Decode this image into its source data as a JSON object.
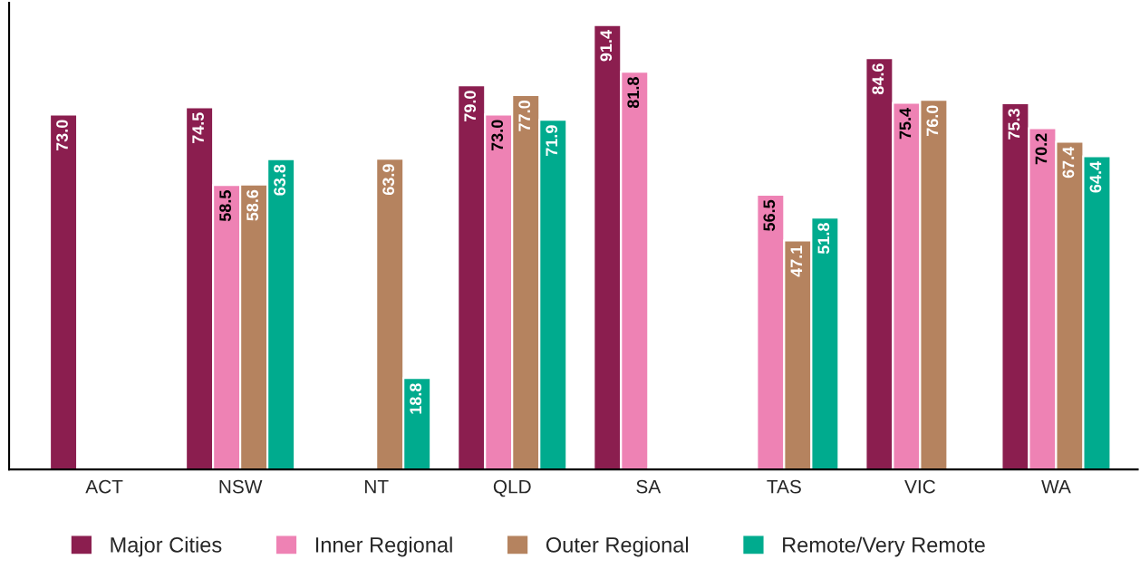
{
  "chart_data": {
    "type": "bar",
    "categories": [
      "ACT",
      "NSW",
      "NT",
      "QLD",
      "SA",
      "TAS",
      "VIC",
      "WA"
    ],
    "series": [
      {
        "name": "Major Cities",
        "color": "#8b1e4f",
        "values": [
          73.0,
          74.5,
          null,
          79.0,
          91.4,
          null,
          84.6,
          75.3
        ],
        "value_labels": [
          "73.0",
          "74.5",
          null,
          "79.0",
          "91.4",
          null,
          "84.6",
          "75.3"
        ]
      },
      {
        "name": "Inner Regional",
        "color": "#ee82b4",
        "values": [
          null,
          58.5,
          null,
          73.0,
          81.8,
          56.5,
          75.4,
          70.2
        ],
        "value_labels": [
          null,
          "58.5",
          null,
          "73.0",
          "81.8",
          "56.5",
          "75.4",
          "70.2"
        ]
      },
      {
        "name": "Outer Regional",
        "color": "#b5835f",
        "values": [
          null,
          58.6,
          63.9,
          77.0,
          null,
          47.1,
          76.0,
          67.4
        ],
        "value_labels": [
          null,
          "58.6",
          "63.9",
          "77.0",
          null,
          "47.1",
          "76.0",
          "67.4"
        ]
      },
      {
        "name": "Remote/Very Remote",
        "color": "#00ab8e",
        "values": [
          null,
          63.8,
          18.8,
          71.9,
          null,
          51.8,
          null,
          64.4
        ],
        "value_labels": [
          null,
          "63.8",
          "18.8",
          "71.9",
          null,
          "51.8",
          null,
          "64.4"
        ]
      }
    ],
    "legend": "bottom",
    "grid": false,
    "tick_labels": "x"
  }
}
